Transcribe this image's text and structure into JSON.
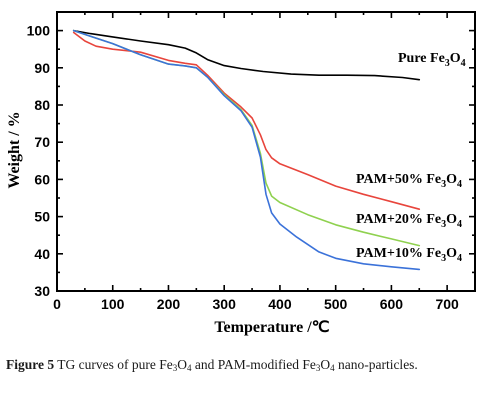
{
  "chart_data": {
    "type": "line",
    "xlabel": "Temperature /℃",
    "ylabel": "Weight / %",
    "xlim": [
      0,
      750
    ],
    "ylim": [
      30,
      105
    ],
    "xticks": [
      0,
      100,
      200,
      300,
      400,
      500,
      600,
      700
    ],
    "yticks": [
      30,
      40,
      50,
      60,
      70,
      80,
      90,
      100
    ],
    "series": [
      {
        "name": "Pure Fe3O4",
        "label_main": "Pure Fe",
        "label_sub1": "3",
        "label_mid": "O",
        "label_sub2": "4",
        "color": "#000000",
        "x": [
          30,
          60,
          100,
          150,
          200,
          230,
          250,
          270,
          300,
          330,
          370,
          420,
          470,
          520,
          570,
          620,
          650
        ],
        "y": [
          100,
          99.2,
          98.3,
          97.2,
          96.2,
          95.3,
          94.0,
          92.2,
          90.6,
          89.8,
          89.0,
          88.3,
          88.0,
          88.0,
          87.9,
          87.4,
          86.8
        ]
      },
      {
        "name": "PAM+50% Fe3O4",
        "label_main": "PAM+50% Fe",
        "label_sub1": "3",
        "label_mid": "O",
        "label_sub2": "4",
        "color": "#e8453c",
        "x": [
          30,
          50,
          70,
          100,
          150,
          200,
          230,
          250,
          270,
          300,
          330,
          350,
          365,
          375,
          385,
          400,
          450,
          500,
          550,
          600,
          650
        ],
        "y": [
          99.5,
          97.2,
          95.8,
          95.0,
          94.2,
          92.0,
          91.2,
          90.8,
          88.0,
          83.2,
          79.5,
          76.5,
          72.0,
          68.0,
          65.8,
          64.2,
          61.3,
          58.2,
          56.0,
          54.0,
          52.0
        ]
      },
      {
        "name": "PAM+20% Fe3O4",
        "label_main": "PAM+20% Fe",
        "label_sub1": "3",
        "label_mid": "O",
        "label_sub2": "4",
        "color": "#8fd14f",
        "x": [
          30,
          60,
          100,
          150,
          200,
          230,
          250,
          270,
          300,
          330,
          350,
          365,
          375,
          385,
          400,
          450,
          500,
          550,
          600,
          650
        ],
        "y": [
          100,
          98.5,
          96.5,
          93.5,
          91.0,
          90.5,
          90.0,
          87.5,
          82.8,
          78.8,
          74.5,
          67.0,
          59.0,
          55.5,
          53.8,
          50.5,
          47.8,
          45.8,
          44.0,
          42.2
        ]
      },
      {
        "name": "PAM+10% Fe3O4",
        "label_main": "PAM+10% Fe",
        "label_sub1": "3",
        "label_mid": "O",
        "label_sub2": "4",
        "color": "#3b72d9",
        "x": [
          30,
          60,
          100,
          150,
          200,
          230,
          250,
          270,
          300,
          330,
          350,
          365,
          375,
          385,
          400,
          430,
          470,
          500,
          550,
          600,
          650
        ],
        "y": [
          100,
          98.5,
          96.5,
          93.5,
          91.0,
          90.5,
          90.0,
          87.5,
          82.5,
          78.5,
          74.0,
          66.0,
          56.0,
          51.0,
          48.0,
          44.5,
          40.5,
          38.8,
          37.3,
          36.5,
          35.8
        ]
      }
    ]
  },
  "caption": {
    "figure_label": "Figure 5",
    "part1": " TG curves of pure Fe",
    "sub1": "3",
    "part2": "O",
    "sub2": "4",
    "part3": " and PAM-modified Fe",
    "sub3": "3",
    "part4": "O",
    "sub4": "4",
    "part5": " nano-particles."
  }
}
